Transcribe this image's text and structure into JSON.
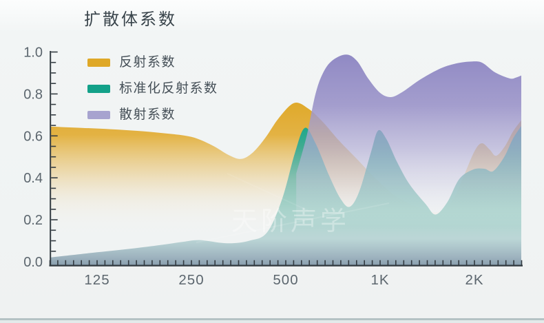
{
  "page": {
    "watermark": "天阶声学",
    "background_color": "#eff2f2",
    "axis_color": "#333b41",
    "tick_label_color": "#5c666e"
  },
  "chart_data": {
    "type": "area",
    "title": "扩散体系数",
    "grid": false,
    "legend_position": "inside-top-left",
    "x_axis": {
      "scale": "log2",
      "unit": "Hz",
      "tick_labels": [
        "125",
        "250",
        "500",
        "1K",
        "2K"
      ],
      "tick_freqs": [
        125,
        250,
        500,
        1000,
        2000
      ],
      "range_hz": [
        88,
        2822
      ],
      "minor_ticks_per_octave": 12
    },
    "y_axis": {
      "tick_labels": [
        "0.0",
        "0.2",
        "0.4",
        "0.6",
        "0.8",
        "1.0"
      ],
      "tick_values": [
        0,
        0.2,
        0.4,
        0.6,
        0.8,
        1.0
      ],
      "range": [
        0,
        1
      ],
      "minor_step": 0.05
    },
    "series": [
      {
        "name": "反射系数",
        "color": "#dfa827",
        "points_hz_value": [
          [
            88,
            0.645
          ],
          [
            112,
            0.638
          ],
          [
            138,
            0.632
          ],
          [
            168,
            0.624
          ],
          [
            206,
            0.612
          ],
          [
            250,
            0.595
          ],
          [
            291,
            0.555
          ],
          [
            329,
            0.508
          ],
          [
            360,
            0.49
          ],
          [
            392,
            0.52
          ],
          [
            430,
            0.59
          ],
          [
            475,
            0.685
          ],
          [
            532,
            0.757
          ],
          [
            590,
            0.73
          ],
          [
            655,
            0.668
          ],
          [
            739,
            0.578
          ],
          [
            843,
            0.49
          ],
          [
            977,
            0.39
          ],
          [
            1128,
            0.31
          ],
          [
            1320,
            0.26
          ],
          [
            1520,
            0.236
          ],
          [
            1692,
            0.285
          ],
          [
            1838,
            0.4
          ],
          [
            1998,
            0.525
          ],
          [
            2110,
            0.565
          ],
          [
            2236,
            0.535
          ],
          [
            2345,
            0.505
          ],
          [
            2500,
            0.55
          ],
          [
            2652,
            0.62
          ],
          [
            2822,
            0.675
          ]
        ]
      },
      {
        "name": "标准化反射系数",
        "color": "#13a189",
        "points_hz_value": [
          [
            88,
            0.02
          ],
          [
            125,
            0.045
          ],
          [
            160,
            0.062
          ],
          [
            200,
            0.08
          ],
          [
            235,
            0.095
          ],
          [
            266,
            0.103
          ],
          [
            325,
            0.088
          ],
          [
            382,
            0.1
          ],
          [
            436,
            0.14
          ],
          [
            487,
            0.3
          ],
          [
            535,
            0.52
          ],
          [
            575,
            0.638
          ],
          [
            622,
            0.565
          ],
          [
            688,
            0.41
          ],
          [
            748,
            0.3
          ],
          [
            800,
            0.262
          ],
          [
            858,
            0.335
          ],
          [
            934,
            0.52
          ],
          [
            985,
            0.625
          ],
          [
            1047,
            0.585
          ],
          [
            1133,
            0.475
          ],
          [
            1240,
            0.37
          ],
          [
            1397,
            0.275
          ],
          [
            1503,
            0.225
          ],
          [
            1640,
            0.285
          ],
          [
            1790,
            0.395
          ],
          [
            1985,
            0.44
          ],
          [
            2155,
            0.443
          ],
          [
            2295,
            0.432
          ],
          [
            2490,
            0.5
          ],
          [
            2650,
            0.585
          ],
          [
            2822,
            0.648
          ]
        ]
      },
      {
        "name": "散射系数",
        "color": "#a7a3cf",
        "area_top_color": "#8e87c3",
        "points_hz_value": [
          [
            540,
            0.42
          ],
          [
            583,
            0.6
          ],
          [
            622,
            0.8
          ],
          [
            660,
            0.905
          ],
          [
            707,
            0.962
          ],
          [
            780,
            0.988
          ],
          [
            843,
            0.958
          ],
          [
            915,
            0.875
          ],
          [
            1000,
            0.805
          ],
          [
            1083,
            0.785
          ],
          [
            1180,
            0.81
          ],
          [
            1340,
            0.868
          ],
          [
            1560,
            0.922
          ],
          [
            1770,
            0.947
          ],
          [
            1975,
            0.955
          ],
          [
            2120,
            0.948
          ],
          [
            2330,
            0.902
          ],
          [
            2590,
            0.874
          ],
          [
            2715,
            0.878
          ],
          [
            2822,
            0.888
          ]
        ]
      }
    ]
  }
}
